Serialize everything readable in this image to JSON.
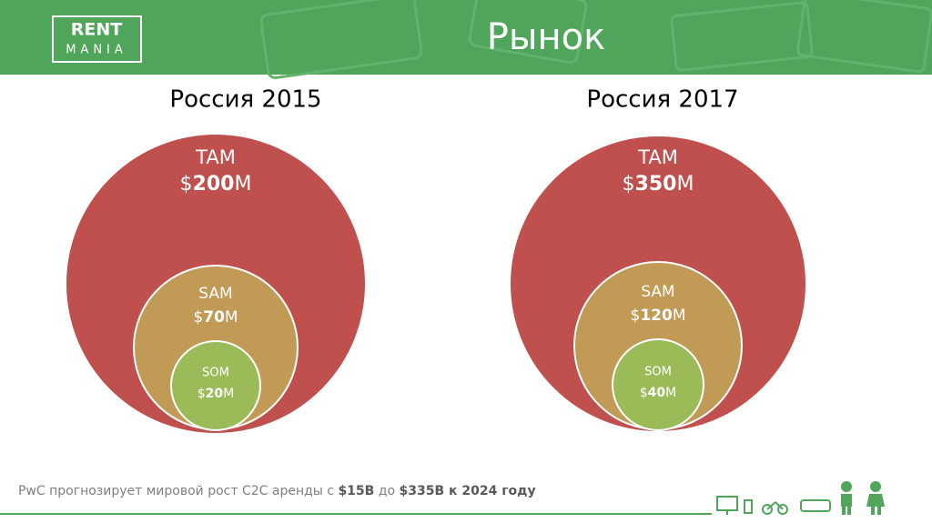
{
  "header": {
    "logo": {
      "top": "RENT",
      "bottom": "MANIA"
    },
    "title": "Рынок"
  },
  "panels": [
    {
      "heading": "Россия 2015",
      "circles": [
        {
          "label": "TAM",
          "prefix": "$",
          "amount": "200",
          "suffix": "M"
        },
        {
          "label": "SAM",
          "prefix": "$",
          "amount": "70",
          "suffix": "M"
        },
        {
          "label": "SOM",
          "prefix": "$",
          "amount": "20",
          "suffix": "M"
        }
      ]
    },
    {
      "heading": "Россия 2017",
      "circles": [
        {
          "label": "TAM",
          "prefix": "$",
          "amount": "350",
          "suffix": "M"
        },
        {
          "label": "SAM",
          "prefix": "$",
          "amount": "120",
          "suffix": "M"
        },
        {
          "label": "SOM",
          "prefix": "$",
          "amount": "40",
          "suffix": "M"
        }
      ]
    }
  ],
  "footer": {
    "segments": [
      {
        "text": "PwC прогнозирует мировой рост C2C аренды с ",
        "bold": false
      },
      {
        "text": "$15B",
        "bold": true
      },
      {
        "text": " до ",
        "bold": false
      },
      {
        "text": "$335B к 2024 году",
        "bold": true
      }
    ]
  }
}
